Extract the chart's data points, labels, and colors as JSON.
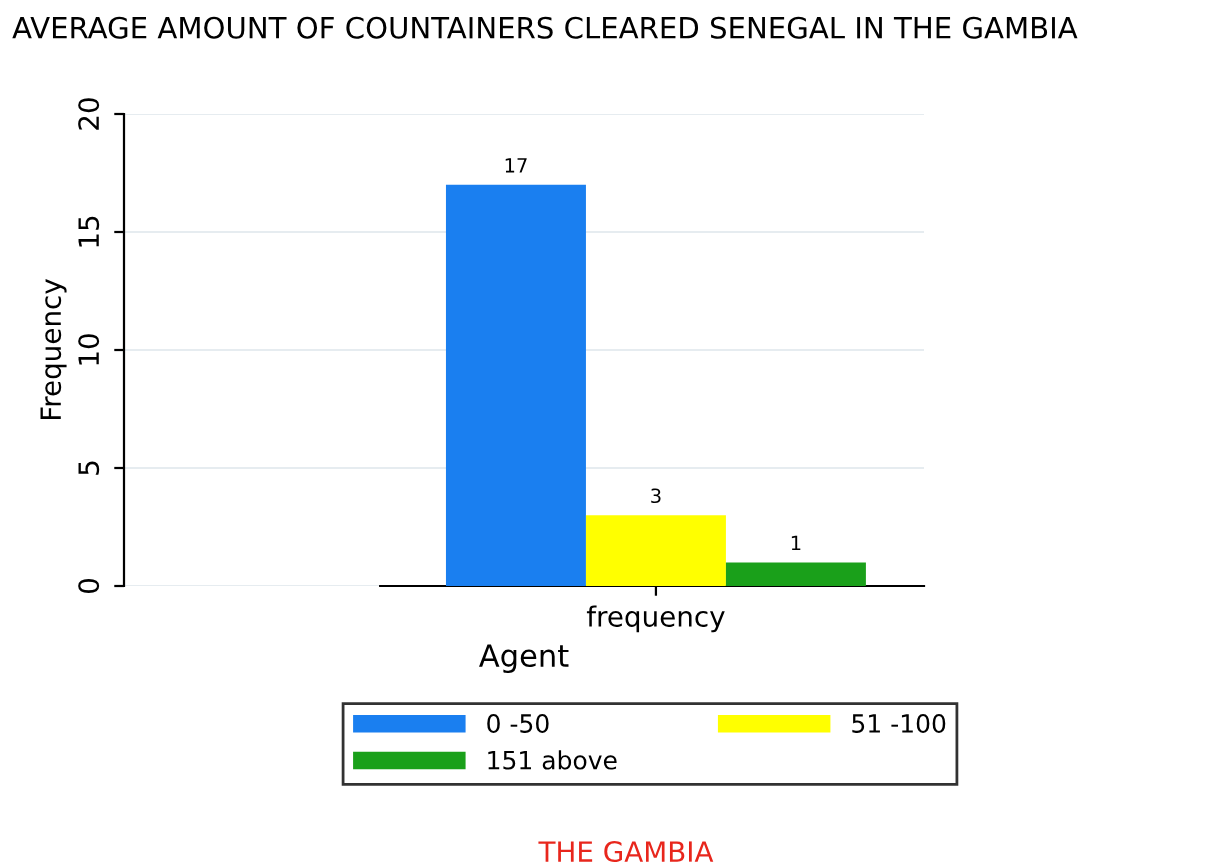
{
  "chart_data": {
    "type": "bar",
    "title": "AVERAGE AMOUNT OF COUNTAINERS CLEARED SENEGAL IN THE GAMBIA",
    "xlabel": "Agent",
    "ylabel": "Frequency",
    "categories": [
      "frequency"
    ],
    "series": [
      {
        "name": "0 -50",
        "color": "#1a7ff0",
        "values": [
          17
        ]
      },
      {
        "name": "51 -100",
        "color": "#ffff00",
        "values": [
          3
        ]
      },
      {
        "name": "151 above",
        "color": "#1aa01a",
        "values": [
          1
        ]
      }
    ],
    "ylim": [
      0,
      20
    ],
    "yticks": [
      0,
      5,
      10,
      15,
      20
    ],
    "grid": "y",
    "legend": "bottom",
    "data_labels": true,
    "annotations": [
      "THE GAMBIA"
    ]
  }
}
